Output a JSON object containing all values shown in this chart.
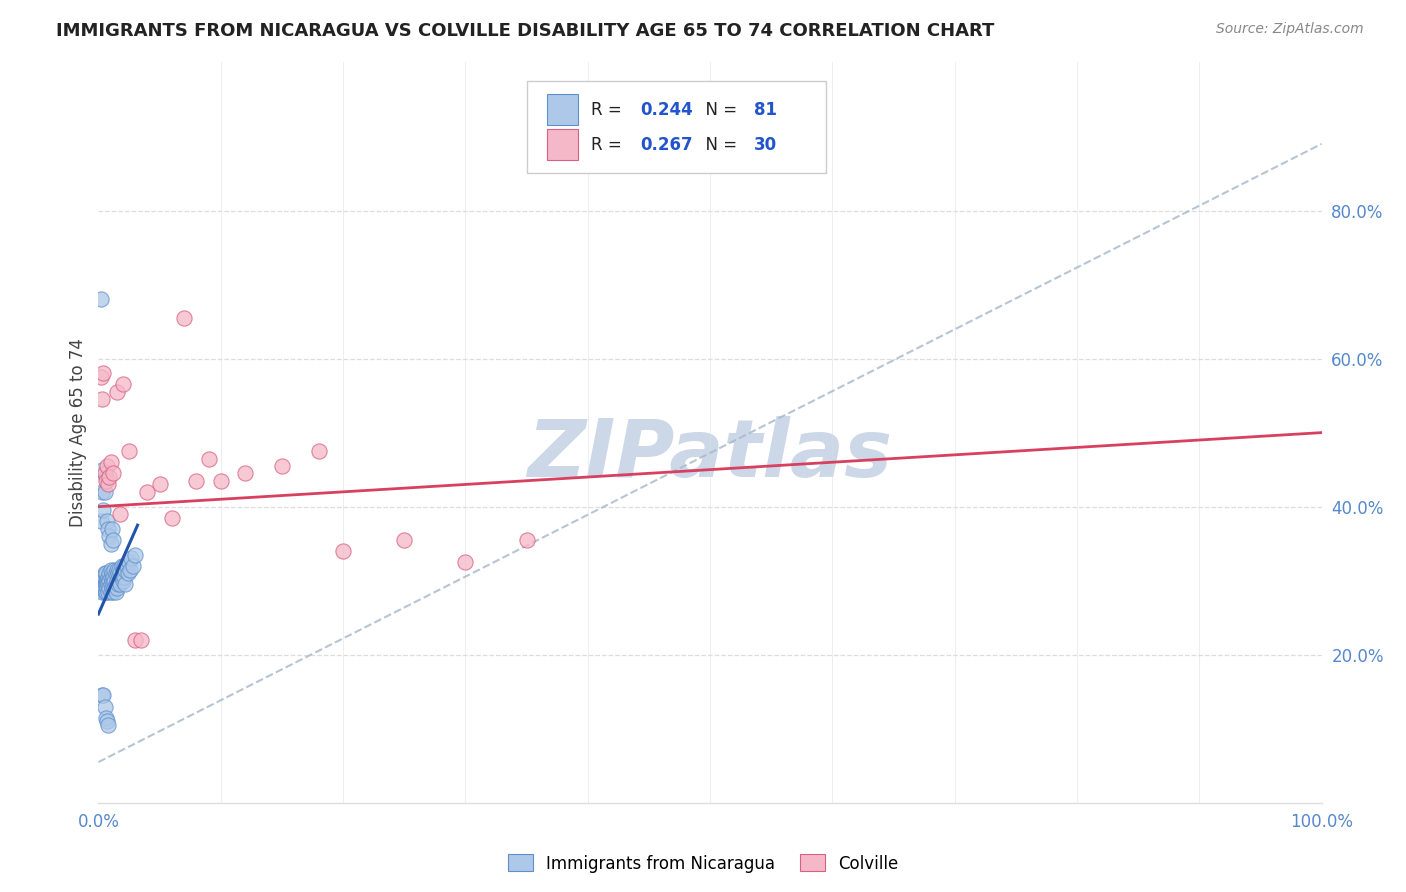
{
  "title": "IMMIGRANTS FROM NICARAGUA VS COLVILLE DISABILITY AGE 65 TO 74 CORRELATION CHART",
  "source": "Source: ZipAtlas.com",
  "ylabel": "Disability Age 65 to 74",
  "xlim": [
    0,
    1.0
  ],
  "ylim": [
    0.0,
    1.0
  ],
  "ytick_vals": [
    0.2,
    0.4,
    0.6,
    0.8
  ],
  "ytick_labels": [
    "20.0%",
    "40.0%",
    "60.0%",
    "80.0%"
  ],
  "xtick_vals": [
    0.0,
    1.0
  ],
  "xtick_labels": [
    "0.0%",
    "100.0%"
  ],
  "legend1_label": "Immigrants from Nicaragua",
  "legend2_label": "Colville",
  "r1": "0.244",
  "n1": "81",
  "r2": "0.267",
  "n2": "30",
  "color1": "#adc8e8",
  "color2": "#f5b8c8",
  "edge1_color": "#6090cc",
  "edge2_color": "#d86080",
  "trendline1_color": "#2255aa",
  "trendline2_color": "#d84060",
  "refline_color": "#aabbcc",
  "watermark": "ZIPatlas",
  "watermark_color": "#ccd8e8",
  "background": "#ffffff",
  "grid_color": "#dddddd",
  "tick_color": "#5588cc",
  "title_color": "#222222",
  "source_color": "#888888",
  "legend_text_color": "#222222",
  "legend_val_color": "#2255cc",
  "scatter1_x": [
    0.002,
    0.003,
    0.003,
    0.004,
    0.004,
    0.005,
    0.005,
    0.005,
    0.005,
    0.006,
    0.006,
    0.006,
    0.006,
    0.007,
    0.007,
    0.007,
    0.008,
    0.008,
    0.008,
    0.009,
    0.009,
    0.009,
    0.01,
    0.01,
    0.01,
    0.01,
    0.011,
    0.011,
    0.011,
    0.012,
    0.012,
    0.012,
    0.013,
    0.013,
    0.013,
    0.014,
    0.014,
    0.014,
    0.015,
    0.015,
    0.015,
    0.016,
    0.016,
    0.017,
    0.017,
    0.018,
    0.018,
    0.019,
    0.019,
    0.02,
    0.02,
    0.021,
    0.021,
    0.022,
    0.022,
    0.023,
    0.024,
    0.025,
    0.026,
    0.027,
    0.028,
    0.03,
    0.002,
    0.003,
    0.003,
    0.004,
    0.005,
    0.006,
    0.007,
    0.008,
    0.009,
    0.01,
    0.011,
    0.012,
    0.002,
    0.003,
    0.004,
    0.005,
    0.006,
    0.007,
    0.008
  ],
  "scatter1_y": [
    0.295,
    0.285,
    0.3,
    0.29,
    0.305,
    0.285,
    0.295,
    0.31,
    0.29,
    0.3,
    0.295,
    0.31,
    0.285,
    0.3,
    0.295,
    0.29,
    0.305,
    0.295,
    0.285,
    0.31,
    0.3,
    0.29,
    0.305,
    0.295,
    0.285,
    0.315,
    0.31,
    0.3,
    0.29,
    0.305,
    0.295,
    0.285,
    0.315,
    0.3,
    0.29,
    0.31,
    0.295,
    0.285,
    0.315,
    0.3,
    0.29,
    0.31,
    0.295,
    0.315,
    0.3,
    0.31,
    0.295,
    0.32,
    0.305,
    0.315,
    0.3,
    0.32,
    0.305,
    0.315,
    0.295,
    0.32,
    0.31,
    0.325,
    0.315,
    0.33,
    0.32,
    0.335,
    0.38,
    0.45,
    0.42,
    0.395,
    0.42,
    0.44,
    0.38,
    0.37,
    0.36,
    0.35,
    0.37,
    0.355,
    0.68,
    0.145,
    0.145,
    0.13,
    0.115,
    0.11,
    0.105
  ],
  "scatter2_x": [
    0.002,
    0.003,
    0.004,
    0.005,
    0.006,
    0.007,
    0.008,
    0.009,
    0.01,
    0.012,
    0.015,
    0.018,
    0.02,
    0.025,
    0.03,
    0.035,
    0.05,
    0.06,
    0.07,
    0.08,
    0.09,
    0.1,
    0.12,
    0.15,
    0.18,
    0.2,
    0.25,
    0.3,
    0.35,
    0.04
  ],
  "scatter2_y": [
    0.575,
    0.545,
    0.58,
    0.445,
    0.435,
    0.455,
    0.43,
    0.44,
    0.46,
    0.445,
    0.555,
    0.39,
    0.565,
    0.475,
    0.22,
    0.22,
    0.43,
    0.385,
    0.655,
    0.435,
    0.465,
    0.435,
    0.445,
    0.455,
    0.475,
    0.34,
    0.355,
    0.325,
    0.355,
    0.42
  ],
  "trend1_x0": 0.0,
  "trend1_y0": 0.255,
  "trend1_x1": 0.032,
  "trend1_y1": 0.375,
  "trend2_x0": 0.0,
  "trend2_y0": 0.4,
  "trend2_x1": 1.0,
  "trend2_y1": 0.5,
  "refline_x0": 0.0,
  "refline_y0": 0.055,
  "refline_x1": 1.0,
  "refline_y1": 0.89
}
